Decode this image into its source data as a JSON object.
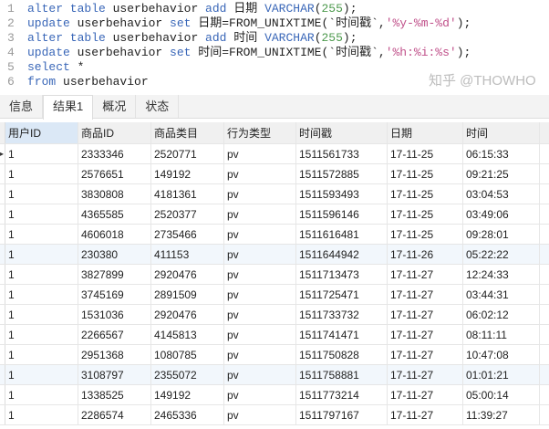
{
  "editor": {
    "lines": [
      {
        "n": "1",
        "parts": [
          [
            "kw",
            "alter table "
          ],
          [
            "tx",
            "userbehavior "
          ],
          [
            "kw",
            "add "
          ],
          [
            "tx",
            "日期 "
          ],
          [
            "kw",
            "VARCHAR"
          ],
          [
            "tx",
            "("
          ],
          [
            "num",
            "255"
          ],
          [
            "tx",
            ");"
          ]
        ]
      },
      {
        "n": "2",
        "parts": [
          [
            "kw",
            "update "
          ],
          [
            "tx",
            "userbehavior "
          ],
          [
            "kw",
            "set "
          ],
          [
            "tx",
            "日期=FROM_UNIXTIME(`时间戳`,"
          ],
          [
            "str",
            "'%y-%m-%d'"
          ],
          [
            "tx",
            ");"
          ]
        ]
      },
      {
        "n": "3",
        "parts": [
          [
            "kw",
            "alter table "
          ],
          [
            "tx",
            "userbehavior "
          ],
          [
            "kw",
            "add "
          ],
          [
            "tx",
            "时间 "
          ],
          [
            "kw",
            "VARCHAR"
          ],
          [
            "tx",
            "("
          ],
          [
            "num",
            "255"
          ],
          [
            "tx",
            ");"
          ]
        ]
      },
      {
        "n": "4",
        "parts": [
          [
            "kw",
            "update "
          ],
          [
            "tx",
            "userbehavior "
          ],
          [
            "kw",
            "set "
          ],
          [
            "tx",
            "时间=FROM_UNIXTIME(`时间戳`,"
          ],
          [
            "str",
            "'%h:%i:%s'"
          ],
          [
            "tx",
            ");"
          ]
        ]
      },
      {
        "n": "5",
        "parts": [
          [
            "kw",
            "select "
          ],
          [
            "tx",
            "*"
          ]
        ]
      },
      {
        "n": "6",
        "parts": [
          [
            "kw",
            "from "
          ],
          [
            "tx",
            "userbehavior"
          ]
        ]
      }
    ]
  },
  "tabs": [
    "信息",
    "结果1",
    "概况",
    "状态"
  ],
  "active_tab": 1,
  "table": {
    "columns": [
      "用户ID",
      "商品ID",
      "商品类目",
      "行为类型",
      "时间戳",
      "日期",
      "时间"
    ],
    "rows": [
      [
        "1",
        "2333346",
        "2520771",
        "pv",
        "1511561733",
        "17-11-25",
        "06:15:33"
      ],
      [
        "1",
        "2576651",
        "149192",
        "pv",
        "1511572885",
        "17-11-25",
        "09:21:25"
      ],
      [
        "1",
        "3830808",
        "4181361",
        "pv",
        "1511593493",
        "17-11-25",
        "03:04:53"
      ],
      [
        "1",
        "4365585",
        "2520377",
        "pv",
        "1511596146",
        "17-11-25",
        "03:49:06"
      ],
      [
        "1",
        "4606018",
        "2735466",
        "pv",
        "1511616481",
        "17-11-25",
        "09:28:01"
      ],
      [
        "1",
        "230380",
        "411153",
        "pv",
        "1511644942",
        "17-11-26",
        "05:22:22"
      ],
      [
        "1",
        "3827899",
        "2920476",
        "pv",
        "1511713473",
        "17-11-27",
        "12:24:33"
      ],
      [
        "1",
        "3745169",
        "2891509",
        "pv",
        "1511725471",
        "17-11-27",
        "03:44:31"
      ],
      [
        "1",
        "1531036",
        "2920476",
        "pv",
        "1511733732",
        "17-11-27",
        "06:02:12"
      ],
      [
        "1",
        "2266567",
        "4145813",
        "pv",
        "1511741471",
        "17-11-27",
        "08:11:11"
      ],
      [
        "1",
        "2951368",
        "1080785",
        "pv",
        "1511750828",
        "17-11-27",
        "10:47:08"
      ],
      [
        "1",
        "3108797",
        "2355072",
        "pv",
        "1511758881",
        "17-11-27",
        "01:01:21"
      ],
      [
        "1",
        "1338525",
        "149192",
        "pv",
        "1511773214",
        "17-11-27",
        "05:00:14"
      ],
      [
        "1",
        "2286574",
        "2465336",
        "pv",
        "1511797167",
        "17-11-27",
        "11:39:27"
      ]
    ]
  },
  "watermark": "知乎 @THOWHO"
}
